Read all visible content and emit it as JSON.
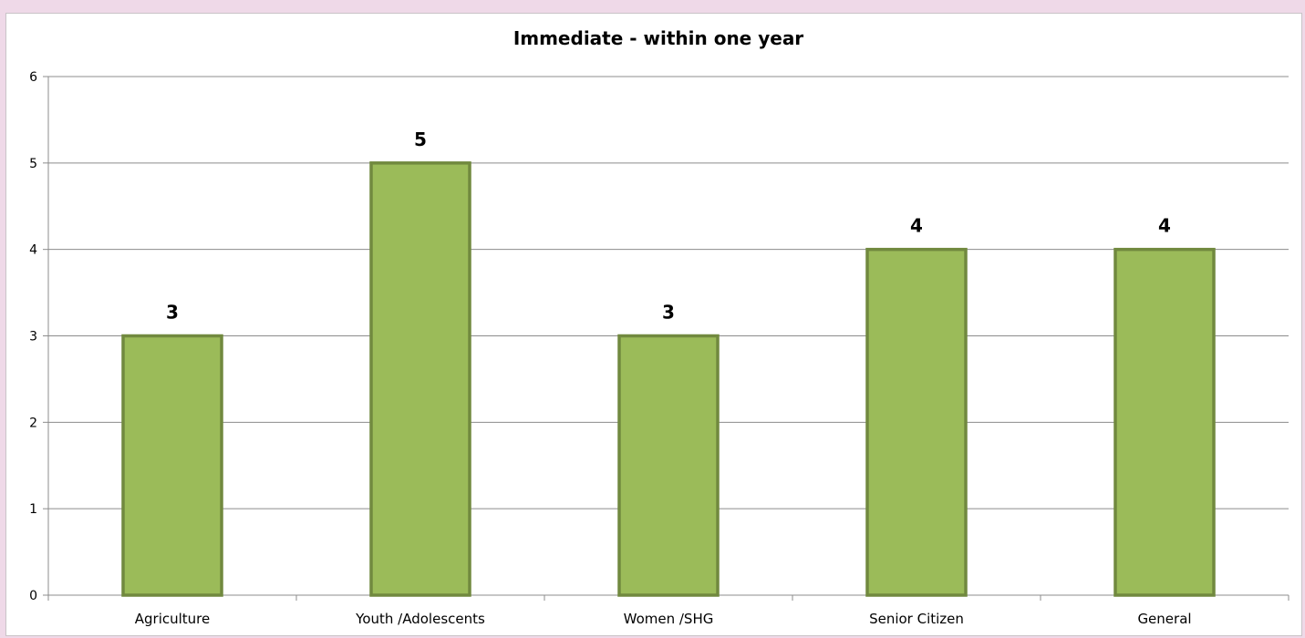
{
  "chart_data": {
    "type": "bar",
    "title": "Immediate - within one year",
    "xlabel": "",
    "ylabel": "",
    "categories": [
      "Agriculture",
      "Youth /Adolescents",
      "Women /SHG",
      "Senior Citizen",
      "General"
    ],
    "values": [
      3,
      5,
      3,
      4,
      4
    ],
    "ylim": [
      0,
      6
    ],
    "yticks": [
      "0",
      "1",
      "2",
      "3",
      "4",
      "5",
      "6"
    ],
    "data_labels": [
      "3",
      "5",
      "3",
      "4",
      "4"
    ],
    "grid": true,
    "legend": "none",
    "colors": {
      "bar_fill": "#9bbb59",
      "bar_stroke": "#71893f",
      "gridline": "#8c8c8c",
      "background": "#efd9e8"
    }
  }
}
